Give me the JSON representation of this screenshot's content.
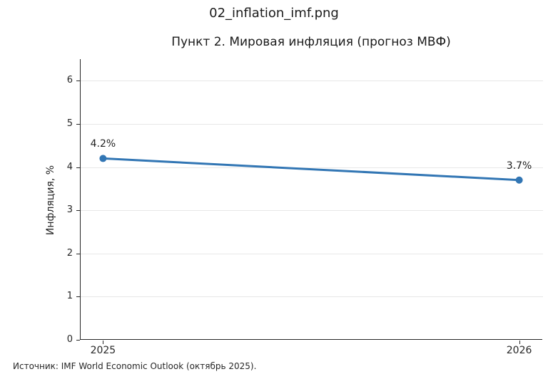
{
  "figure": {
    "suptitle": "02_inflation_imf.png",
    "title": "Пункт 2. Мировая инфляция (прогноз МВФ)",
    "ylabel": "Инфляция, %",
    "source": "Источник: IMF World Economic Outlook (октябрь 2025)."
  },
  "chart_data": {
    "type": "line",
    "title": "Пункт 2. Мировая инфляция (прогноз МВФ)",
    "categories": [
      "2025",
      "2026"
    ],
    "values": [
      4.2,
      3.7
    ],
    "point_labels": [
      "4.2%",
      "3.7%"
    ],
    "xlabel": "",
    "ylabel": "Инфляция, %",
    "ylim": [
      0,
      6.5
    ],
    "yticks": [
      0,
      1,
      2,
      3,
      4,
      5,
      6
    ],
    "grid": "horizontal",
    "legend": "none",
    "line_color": "#3276b4",
    "marker": "circle",
    "grid_color": "#e7e7e7",
    "spine_color": "#262626"
  }
}
